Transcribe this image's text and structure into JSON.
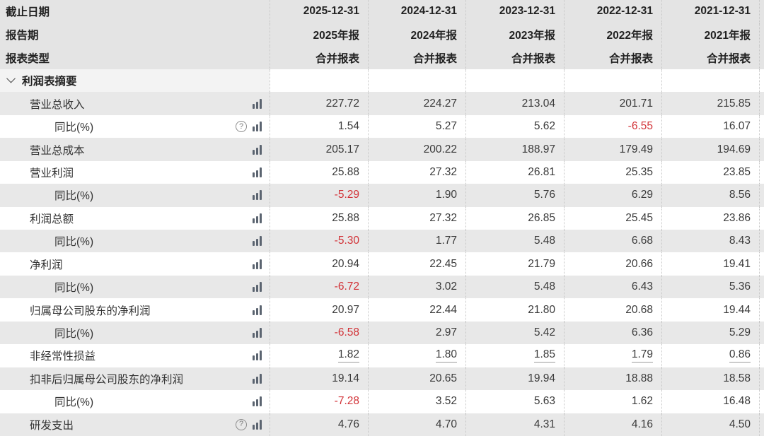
{
  "colors": {
    "negative_value": "#d23237",
    "header_bg": "#e4e4e4",
    "stripe_bg": "#e8e8e8",
    "section_bg": "#f3f3f3",
    "icon": "#5b6470"
  },
  "header": {
    "rows": [
      {
        "label": "截止日期",
        "values": [
          "2025-12-31",
          "2024-12-31",
          "2023-12-31",
          "2022-12-31",
          "2021-12-31"
        ]
      },
      {
        "label": "报告期",
        "values": [
          "2025年报",
          "2024年报",
          "2023年报",
          "2022年报",
          "2021年报"
        ]
      },
      {
        "label": "报表类型",
        "values": [
          "合并报表",
          "合并报表",
          "合并报表",
          "合并报表",
          "合并报表"
        ]
      }
    ]
  },
  "section": {
    "label": "利润表摘要"
  },
  "rows": [
    {
      "label": "营业总收入",
      "indent": 1,
      "help": false,
      "chart": true,
      "underline": false,
      "values": [
        "227.72",
        "224.27",
        "213.04",
        "201.71",
        "215.85"
      ]
    },
    {
      "label": "同比(%)",
      "indent": 2,
      "help": true,
      "chart": true,
      "underline": false,
      "values": [
        "1.54",
        "5.27",
        "5.62",
        "-6.55",
        "16.07"
      ]
    },
    {
      "label": "营业总成本",
      "indent": 1,
      "help": false,
      "chart": true,
      "underline": false,
      "values": [
        "205.17",
        "200.22",
        "188.97",
        "179.49",
        "194.69"
      ]
    },
    {
      "label": "营业利润",
      "indent": 1,
      "help": false,
      "chart": true,
      "underline": false,
      "values": [
        "25.88",
        "27.32",
        "26.81",
        "25.35",
        "23.85"
      ]
    },
    {
      "label": "同比(%)",
      "indent": 2,
      "help": false,
      "chart": true,
      "underline": false,
      "values": [
        "-5.29",
        "1.90",
        "5.76",
        "6.29",
        "8.56"
      ]
    },
    {
      "label": "利润总额",
      "indent": 1,
      "help": false,
      "chart": true,
      "underline": false,
      "values": [
        "25.88",
        "27.32",
        "26.85",
        "25.45",
        "23.86"
      ]
    },
    {
      "label": "同比(%)",
      "indent": 2,
      "help": false,
      "chart": true,
      "underline": false,
      "values": [
        "-5.30",
        "1.77",
        "5.48",
        "6.68",
        "8.43"
      ]
    },
    {
      "label": "净利润",
      "indent": 1,
      "help": false,
      "chart": true,
      "underline": false,
      "values": [
        "20.94",
        "22.45",
        "21.79",
        "20.66",
        "19.41"
      ]
    },
    {
      "label": "同比(%)",
      "indent": 2,
      "help": false,
      "chart": true,
      "underline": false,
      "values": [
        "-6.72",
        "3.02",
        "5.48",
        "6.43",
        "5.36"
      ]
    },
    {
      "label": "归属母公司股东的净利润",
      "indent": 1,
      "help": false,
      "chart": true,
      "underline": false,
      "values": [
        "20.97",
        "22.44",
        "21.80",
        "20.68",
        "19.44"
      ]
    },
    {
      "label": "同比(%)",
      "indent": 2,
      "help": false,
      "chart": true,
      "underline": false,
      "values": [
        "-6.58",
        "2.97",
        "5.42",
        "6.36",
        "5.29"
      ]
    },
    {
      "label": "非经常性损益",
      "indent": 1,
      "help": false,
      "chart": true,
      "underline": true,
      "values": [
        "1.82",
        "1.80",
        "1.85",
        "1.79",
        "0.86"
      ]
    },
    {
      "label": "扣非后归属母公司股东的净利润",
      "indent": 1,
      "help": false,
      "chart": true,
      "underline": false,
      "values": [
        "19.14",
        "20.65",
        "19.94",
        "18.88",
        "18.58"
      ]
    },
    {
      "label": "同比(%)",
      "indent": 2,
      "help": false,
      "chart": true,
      "underline": false,
      "values": [
        "-7.28",
        "3.52",
        "5.63",
        "1.62",
        "16.48"
      ]
    },
    {
      "label": "研发支出",
      "indent": 1,
      "help": true,
      "chart": true,
      "underline": false,
      "values": [
        "4.76",
        "4.70",
        "4.31",
        "4.16",
        "4.50"
      ]
    }
  ]
}
